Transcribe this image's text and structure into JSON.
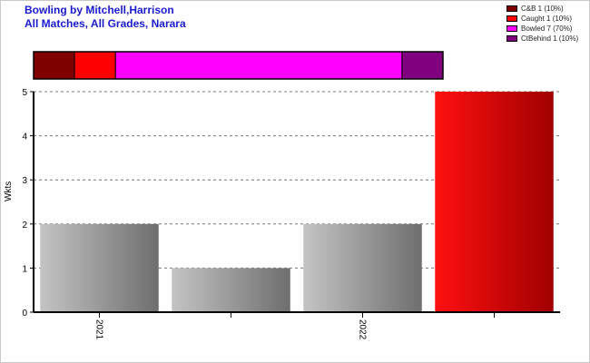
{
  "title": {
    "line1": "Bowling by Mitchell,Harrison",
    "line2": "All Matches, All Grades, Narara"
  },
  "legend": {
    "placement": "top-right",
    "items": [
      {
        "label": "C&B 1 (10%)",
        "color": "#800000"
      },
      {
        "label": "Caught 1 (10%)",
        "color": "#ff0000"
      },
      {
        "label": "Bowled 7 (70%)",
        "color": "#ff00ff"
      },
      {
        "label": "CtBehind 1 (10%)",
        "color": "#800080"
      }
    ]
  },
  "chart_data": [
    {
      "type": "bar",
      "orientation": "horizontal-stacked",
      "series": [
        {
          "name": "C&B",
          "value": 1,
          "percent": 10,
          "color": "#800000"
        },
        {
          "name": "Caught",
          "value": 1,
          "percent": 10,
          "color": "#ff0000"
        },
        {
          "name": "Bowled",
          "value": 7,
          "percent": 70,
          "color": "#ff00ff"
        },
        {
          "name": "CtBehind",
          "value": 1,
          "percent": 10,
          "color": "#800080"
        }
      ],
      "total": 10
    },
    {
      "type": "bar",
      "ylabel": "Wkts",
      "ylim": [
        0,
        5
      ],
      "yticks": [
        0,
        1,
        2,
        3,
        4,
        5
      ],
      "grid": true,
      "bars": [
        {
          "value": 2,
          "highlight": false
        },
        {
          "value": 1,
          "highlight": false
        },
        {
          "value": 2,
          "highlight": false
        },
        {
          "value": 5,
          "highlight": true
        }
      ],
      "xtick_labels": [
        "2021",
        "2022"
      ]
    }
  ]
}
